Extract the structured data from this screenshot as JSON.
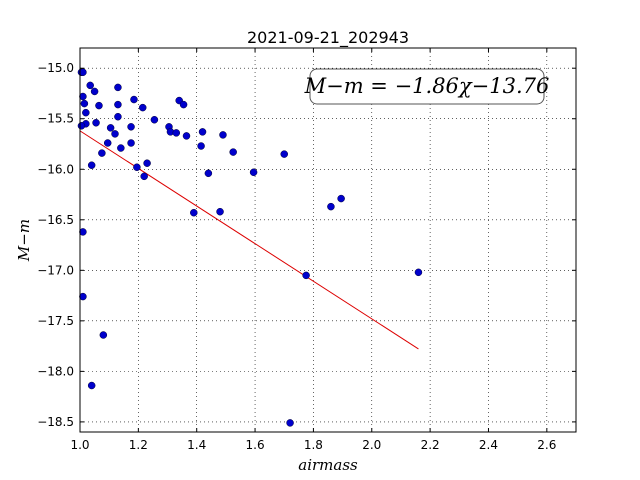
{
  "chart_data": {
    "type": "scatter",
    "title": "2021-09-21_202943",
    "xlabel": "airmass",
    "ylabel": "M−m",
    "xlim": [
      1.0,
      2.7
    ],
    "ylim": [
      -18.6,
      -14.8
    ],
    "y_inverted": true,
    "xticks": [
      1.0,
      1.2,
      1.4,
      1.6,
      1.8,
      2.0,
      2.2,
      2.4,
      2.6
    ],
    "xtick_labels": [
      "1.0",
      "1.2",
      "1.4",
      "1.6",
      "1.8",
      "2.0",
      "2.2",
      "2.4",
      "2.6"
    ],
    "yticks": [
      -15.0,
      -15.5,
      -16.0,
      -16.5,
      -17.0,
      -17.5,
      -18.0,
      -18.5
    ],
    "ytick_labels": [
      "−15.0",
      "−15.5",
      "−16.0",
      "−16.5",
      "−17.0",
      "−17.5",
      "−18.0",
      "−18.5"
    ],
    "grid": true,
    "annotation": "M−m = −1.86χ−13.76",
    "fit_line": {
      "slope": -1.86,
      "intercept": -13.76,
      "x_range": [
        1.0,
        2.16
      ],
      "color": "#dd0000"
    },
    "point_color": "#0000cc",
    "points": [
      [
        1.005,
        -15.04
      ],
      [
        1.01,
        -15.04
      ],
      [
        1.01,
        -15.28
      ],
      [
        1.015,
        -15.35
      ],
      [
        1.02,
        -15.44
      ],
      [
        1.02,
        -15.55
      ],
      [
        1.005,
        -15.57
      ],
      [
        1.035,
        -15.17
      ],
      [
        1.05,
        -15.23
      ],
      [
        1.065,
        -15.37
      ],
      [
        1.055,
        -15.54
      ],
      [
        1.04,
        -15.96
      ],
      [
        1.075,
        -15.84
      ],
      [
        1.095,
        -15.74
      ],
      [
        1.105,
        -15.59
      ],
      [
        1.12,
        -15.65
      ],
      [
        1.13,
        -15.19
      ],
      [
        1.13,
        -15.36
      ],
      [
        1.13,
        -15.48
      ],
      [
        1.14,
        -15.79
      ],
      [
        1.175,
        -15.58
      ],
      [
        1.175,
        -15.74
      ],
      [
        1.185,
        -15.31
      ],
      [
        1.195,
        -15.98
      ],
      [
        1.215,
        -15.39
      ],
      [
        1.22,
        -16.07
      ],
      [
        1.23,
        -15.94
      ],
      [
        1.255,
        -15.51
      ],
      [
        1.305,
        -15.58
      ],
      [
        1.31,
        -15.63
      ],
      [
        1.33,
        -15.64
      ],
      [
        1.34,
        -15.32
      ],
      [
        1.355,
        -15.36
      ],
      [
        1.365,
        -15.67
      ],
      [
        1.39,
        -16.43
      ],
      [
        1.415,
        -15.77
      ],
      [
        1.42,
        -15.63
      ],
      [
        1.44,
        -16.04
      ],
      [
        1.48,
        -16.42
      ],
      [
        1.49,
        -15.66
      ],
      [
        1.525,
        -15.83
      ],
      [
        1.595,
        -16.03
      ],
      [
        1.7,
        -15.85
      ],
      [
        1.72,
        -18.51
      ],
      [
        1.775,
        -17.05
      ],
      [
        1.86,
        -16.37
      ],
      [
        1.895,
        -16.29
      ],
      [
        2.16,
        -17.02
      ],
      [
        1.01,
        -16.62
      ],
      [
        1.01,
        -17.26
      ],
      [
        1.08,
        -17.64
      ],
      [
        1.04,
        -18.14
      ]
    ]
  }
}
